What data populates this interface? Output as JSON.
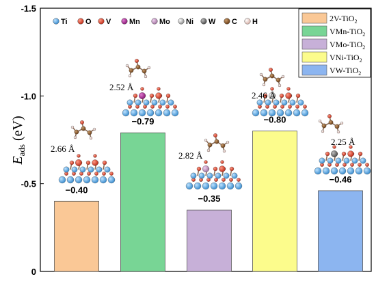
{
  "chart_data": {
    "type": "bar",
    "categories": [
      "2V-TiO2",
      "VMn-TiO2",
      "VMo-TiO2",
      "VNi-TiO2",
      "VW-TiO2"
    ],
    "values": [
      -0.4,
      -0.79,
      -0.35,
      -0.8,
      -0.46
    ],
    "value_labels": [
      "−0.40",
      "−0.79",
      "−0.35",
      "−0.80",
      "−0.46"
    ],
    "bond_distances": [
      "2.66 Å",
      "2.52 Å",
      "2.82 Å",
      "2.46 Å",
      "2.25 Å"
    ],
    "colors": [
      "#FAC896",
      "#78D595",
      "#C7B0D8",
      "#FCFC8C",
      "#8CB5F0"
    ],
    "ylabel_main": "E",
    "ylabel_sub": "ads",
    "ylabel_unit": " (eV)",
    "ylim": [
      0,
      -1.5
    ],
    "y_reversed": true,
    "yticks": [
      0,
      -0.5,
      -1.0,
      -1.5
    ],
    "ytick_labels": [
      "0",
      "-0.5",
      "-1.0",
      "-1.5"
    ],
    "legend": {
      "placement": "top-right",
      "entries": [
        {
          "base": "2V-TiO",
          "sub": "2"
        },
        {
          "base": "VMn-TiO",
          "sub": "2"
        },
        {
          "base": "VMo-TiO",
          "sub": "2"
        },
        {
          "base": "VNi-TiO",
          "sub": "2"
        },
        {
          "base": "VW-TiO",
          "sub": "2"
        }
      ]
    },
    "atom_key": [
      {
        "symbol": "Ti",
        "color": "#5AA9E6"
      },
      {
        "symbol": "O",
        "color": "#D9462E"
      },
      {
        "symbol": "V",
        "color": "#C0392B"
      },
      {
        "symbol": "Mn",
        "color": "#A0248C"
      },
      {
        "symbol": "Mo",
        "color": "#C9A0C8"
      },
      {
        "symbol": "Ni",
        "color": "#B8B8B8"
      },
      {
        "symbol": "W",
        "color": "#7A7A7A"
      },
      {
        "symbol": "C",
        "color": "#8B5A2B"
      },
      {
        "symbol": "H",
        "color": "#F3D6D0"
      }
    ],
    "grid": false
  }
}
